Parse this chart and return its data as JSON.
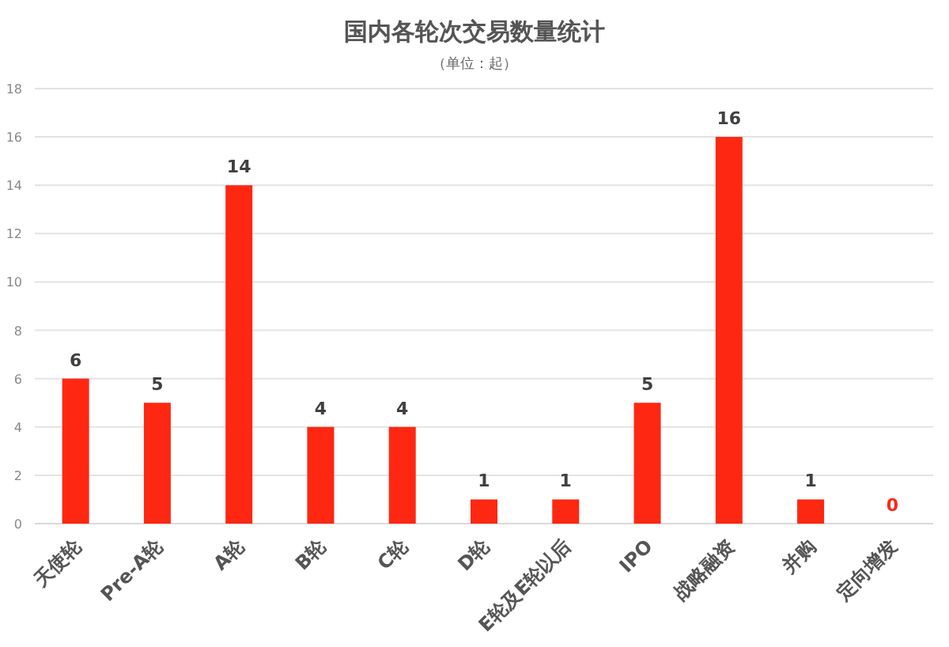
{
  "chart_data": {
    "type": "bar",
    "title": "国内各轮次交易数量统计",
    "subtitle": "（单位：起）",
    "categories": [
      "天使轮",
      "Pre-A轮",
      "A轮",
      "B轮",
      "C轮",
      "D轮",
      "E轮及E轮以后",
      "IPO",
      "战略融资",
      "并购",
      "定向增发"
    ],
    "values": [
      6,
      5,
      14,
      4,
      4,
      1,
      1,
      5,
      16,
      1,
      0
    ],
    "color": "#fe2712",
    "ylim": [
      0,
      18
    ],
    "yticks": [
      0,
      2,
      4,
      6,
      8,
      10,
      12,
      14,
      16,
      18
    ],
    "grid": "y",
    "data_labels": true
  }
}
